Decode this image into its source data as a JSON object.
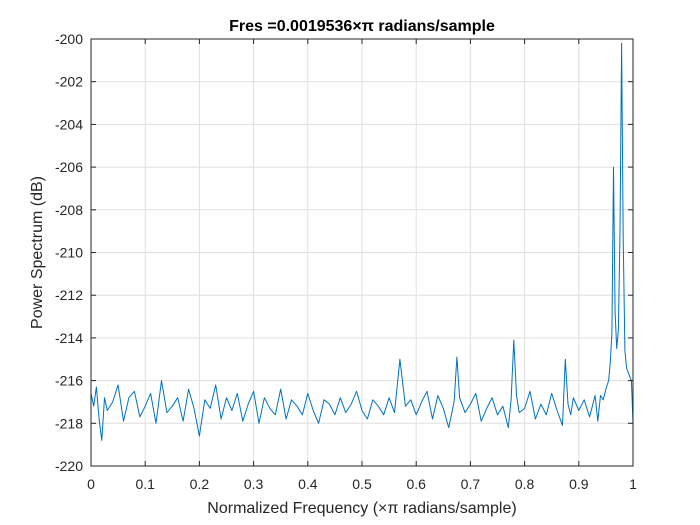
{
  "chart_data": {
    "type": "line",
    "title": "Fres =0.0019536×π radians/sample",
    "xlabel": "Normalized Frequency (×π radians/sample)",
    "ylabel": "Power Spectrum (dB)",
    "xlim": [
      0,
      1
    ],
    "ylim": [
      -220,
      -200
    ],
    "xticks": [
      0,
      0.1,
      0.2,
      0.3,
      0.4,
      0.5,
      0.6,
      0.7,
      0.8,
      0.9,
      1
    ],
    "xtick_labels": [
      "0",
      "0.1",
      "0.2",
      "0.3",
      "0.4",
      "0.5",
      "0.6",
      "0.7",
      "0.8",
      "0.9",
      "1"
    ],
    "yticks": [
      -220,
      -218,
      -216,
      -214,
      -212,
      -210,
      -208,
      -206,
      -204,
      -202,
      -200
    ],
    "ytick_labels": [
      "-220",
      "-218",
      "-216",
      "-214",
      "-212",
      "-210",
      "-208",
      "-206",
      "-204",
      "-202",
      "-200"
    ],
    "grid": true,
    "line_color": "#0072BD",
    "series": [
      {
        "x": [
          0,
          0.005,
          0.01,
          0.015,
          0.02,
          0.025,
          0.03,
          0.04,
          0.05,
          0.06,
          0.07,
          0.08,
          0.09,
          0.1,
          0.11,
          0.12,
          0.13,
          0.14,
          0.15,
          0.16,
          0.17,
          0.18,
          0.19,
          0.2,
          0.21,
          0.22,
          0.23,
          0.24,
          0.25,
          0.26,
          0.27,
          0.28,
          0.29,
          0.3,
          0.31,
          0.32,
          0.33,
          0.34,
          0.35,
          0.36,
          0.37,
          0.38,
          0.39,
          0.4,
          0.41,
          0.42,
          0.43,
          0.44,
          0.45,
          0.46,
          0.47,
          0.48,
          0.49,
          0.5,
          0.51,
          0.52,
          0.53,
          0.54,
          0.55,
          0.56,
          0.57,
          0.58,
          0.59,
          0.6,
          0.61,
          0.62,
          0.63,
          0.64,
          0.65,
          0.66,
          0.67,
          0.675,
          0.68,
          0.69,
          0.7,
          0.71,
          0.72,
          0.73,
          0.74,
          0.75,
          0.76,
          0.77,
          0.775,
          0.78,
          0.785,
          0.79,
          0.8,
          0.81,
          0.82,
          0.83,
          0.84,
          0.85,
          0.86,
          0.87,
          0.875,
          0.88,
          0.885,
          0.89,
          0.9,
          0.91,
          0.92,
          0.93,
          0.935,
          0.94,
          0.945,
          0.95,
          0.955,
          0.958,
          0.961,
          0.964,
          0.967,
          0.97,
          0.973,
          0.976,
          0.979,
          0.982,
          0.985,
          0.988,
          0.991,
          0.994,
          0.997,
          1.0
        ],
        "values": [
          -216.6,
          -217.2,
          -216.3,
          -217.8,
          -218.8,
          -216.8,
          -217.4,
          -217.0,
          -216.2,
          -217.9,
          -216.8,
          -216.5,
          -217.7,
          -217.2,
          -216.6,
          -218.0,
          -216.0,
          -217.5,
          -217.2,
          -216.8,
          -217.9,
          -216.4,
          -217.3,
          -218.6,
          -216.9,
          -217.3,
          -216.2,
          -217.8,
          -216.8,
          -217.4,
          -216.6,
          -217.9,
          -217.1,
          -216.5,
          -218.0,
          -216.8,
          -217.3,
          -217.6,
          -216.4,
          -217.8,
          -216.9,
          -217.2,
          -217.6,
          -216.6,
          -217.4,
          -218.0,
          -216.9,
          -217.1,
          -217.6,
          -216.8,
          -217.5,
          -217.1,
          -216.5,
          -217.4,
          -217.8,
          -216.9,
          -217.2,
          -217.6,
          -216.8,
          -217.5,
          -215.0,
          -217.2,
          -216.9,
          -217.6,
          -217.0,
          -216.5,
          -217.8,
          -216.7,
          -217.3,
          -218.2,
          -217.0,
          -214.9,
          -216.8,
          -217.5,
          -217.1,
          -216.6,
          -217.9,
          -217.3,
          -216.8,
          -217.6,
          -217.2,
          -218.2,
          -216.9,
          -214.1,
          -216.7,
          -217.5,
          -217.3,
          -216.5,
          -217.8,
          -217.1,
          -217.6,
          -216.6,
          -217.4,
          -218.1,
          -215.0,
          -217.1,
          -217.6,
          -216.8,
          -217.4,
          -216.9,
          -217.7,
          -216.7,
          -217.9,
          -216.7,
          -216.9,
          -216.4,
          -216.0,
          -215.2,
          -213.8,
          -206.0,
          -212.8,
          -214.5,
          -213.6,
          -209.0,
          -200.2,
          -209.3,
          -214.6,
          -215.4,
          -215.6,
          -215.8,
          -216.0,
          -218.0
        ]
      }
    ]
  }
}
